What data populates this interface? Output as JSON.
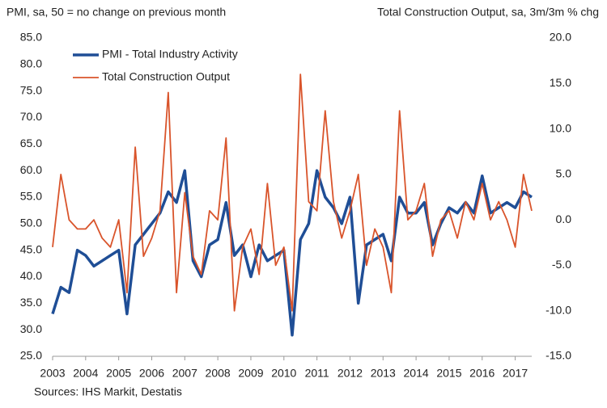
{
  "chart_data": {
    "type": "line",
    "y_label": "PMI, sa, 50 = no change on previous month",
    "y2_label": "Total Construction Output, sa, 3m/3m % chg",
    "source": "Sources: IHS Markit, Destatis",
    "x": [
      2003,
      2003.25,
      2003.5,
      2003.75,
      2004,
      2004.25,
      2004.5,
      2004.75,
      2005,
      2005.25,
      2005.5,
      2005.75,
      2006,
      2006.25,
      2006.5,
      2006.75,
      2007,
      2007.25,
      2007.5,
      2007.75,
      2008,
      2008.25,
      2008.5,
      2008.75,
      2009,
      2009.25,
      2009.5,
      2009.75,
      2010,
      2010.25,
      2010.5,
      2010.75,
      2011,
      2011.25,
      2011.5,
      2011.75,
      2012,
      2012.25,
      2012.5,
      2012.75,
      2013,
      2013.25,
      2013.5,
      2013.75,
      2014,
      2014.25,
      2014.5,
      2014.75,
      2015,
      2015.25,
      2015.5,
      2015.75,
      2016,
      2016.25,
      2016.5,
      2016.75,
      2017,
      2017.25,
      2017.5
    ],
    "series": [
      {
        "name": "PMI - Total Industry Activity",
        "color": "#1f4e96",
        "width": 3.5,
        "values": [
          33,
          38,
          37,
          45,
          44,
          42,
          43,
          44,
          45,
          33,
          46,
          48,
          50,
          52,
          56,
          54,
          60,
          43,
          40,
          46,
          47,
          54,
          44,
          46,
          40,
          46,
          43,
          44,
          45,
          29,
          47,
          50,
          60,
          55,
          53,
          50,
          55,
          35,
          46,
          47,
          48,
          43,
          55,
          52,
          52,
          54,
          46,
          50,
          53,
          52,
          54,
          52,
          59,
          52,
          53,
          54,
          53,
          56,
          55
        ]
      },
      {
        "name": "Total Construction Output",
        "color": "#d9542b",
        "width": 1.8,
        "axis": "y2",
        "values": [
          -3,
          5,
          0,
          -1,
          -1,
          0,
          -2,
          -3,
          0,
          -8,
          8,
          -4,
          -2,
          1,
          14,
          -8,
          3,
          -4,
          -6,
          1,
          0,
          9,
          -10,
          -3,
          -1,
          -6,
          4,
          -5,
          -3,
          -10,
          16,
          2,
          1,
          12,
          2,
          -2,
          1,
          5,
          -5,
          -1,
          -3,
          -8,
          12,
          0,
          1,
          4,
          -4,
          0,
          1,
          -2,
          2,
          0,
          4,
          0,
          2,
          0,
          -3,
          5,
          1
        ]
      }
    ],
    "xlim": [
      2003,
      2017.5
    ],
    "xticks": [
      2003,
      2004,
      2005,
      2006,
      2007,
      2008,
      2009,
      2010,
      2011,
      2012,
      2013,
      2014,
      2015,
      2016,
      2017
    ],
    "ylim": [
      25,
      85
    ],
    "yticks": [
      {
        "value": 25,
        "label": "25.0"
      },
      {
        "value": 30,
        "label": "30.0"
      },
      {
        "value": 35,
        "label": "35.0"
      },
      {
        "value": 40,
        "label": "40.0"
      },
      {
        "value": 45,
        "label": "45.0"
      },
      {
        "value": 50,
        "label": "50.0"
      },
      {
        "value": 55,
        "label": "55.0"
      },
      {
        "value": 60,
        "label": "60.0"
      },
      {
        "value": 65,
        "label": "65.0"
      },
      {
        "value": 70,
        "label": "70.0"
      },
      {
        "value": 75,
        "label": "75.0"
      },
      {
        "value": 80,
        "label": "80.0"
      },
      {
        "value": 85,
        "label": "85.0"
      }
    ],
    "y2lim": [
      -15,
      20
    ],
    "y2ticks": [
      {
        "value": -15,
        "label": "-15.0"
      },
      {
        "value": -10,
        "label": "-10.0"
      },
      {
        "value": -5,
        "label": "-5.0"
      },
      {
        "value": 0,
        "label": "0.0"
      },
      {
        "value": 5,
        "label": "5.0"
      },
      {
        "value": 10,
        "label": "10.0"
      },
      {
        "value": 15,
        "label": "15.0"
      },
      {
        "value": 20,
        "label": "20.0"
      }
    ],
    "legend": "upper left",
    "grid": false
  }
}
